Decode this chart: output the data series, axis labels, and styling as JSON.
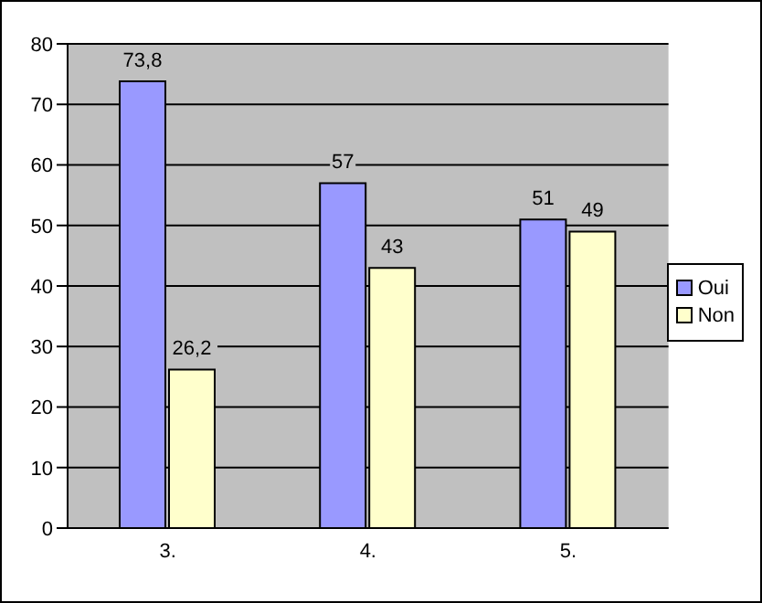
{
  "chart_data": {
    "type": "bar",
    "categories": [
      "3.",
      "4.",
      "5."
    ],
    "series": [
      {
        "name": "Oui",
        "color": "#9999ff",
        "values": [
          73.8,
          57,
          51
        ],
        "value_labels": [
          "73,8",
          "57",
          "51"
        ]
      },
      {
        "name": "Non",
        "color": "#ffffcc",
        "values": [
          26.2,
          43,
          49
        ],
        "value_labels": [
          "26,2",
          "43",
          "49"
        ]
      }
    ],
    "ylim": [
      0,
      80
    ],
    "yticks": [
      0,
      10,
      20,
      30,
      40,
      50,
      60,
      70,
      80
    ],
    "grid": "y",
    "legend": "right"
  }
}
